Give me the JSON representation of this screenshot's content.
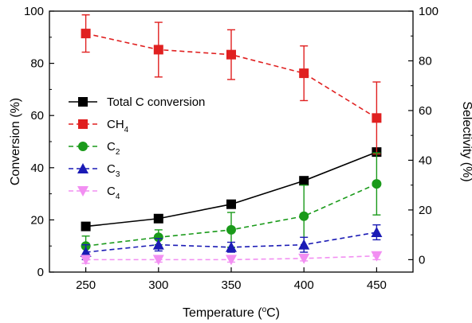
{
  "chart_data": {
    "type": "line",
    "title": "",
    "xlabel": "Temperature (°C)",
    "ylabel_left": "Conversion (%)",
    "ylabel_right": "Selectivity (%)",
    "x": [
      250,
      300,
      350,
      400,
      450
    ],
    "xlim": [
      225,
      475
    ],
    "ylim_left": [
      0,
      100
    ],
    "ylim_right": [
      -5,
      100
    ],
    "x_ticks": [
      "250",
      "300",
      "350",
      "400",
      "450"
    ],
    "y_ticks_left": [
      "0",
      "20",
      "40",
      "60",
      "80",
      "100"
    ],
    "y_ticks_right": [
      "0",
      "20",
      "40",
      "60",
      "80",
      "100"
    ],
    "grid": false,
    "legend_position": "left",
    "series": [
      {
        "name": "Total C conversion",
        "label_main": "Total C conversion",
        "label_sub": "",
        "axis": "left",
        "values": [
          17.5,
          20.5,
          26,
          35,
          46
        ],
        "errors": [
          0.8,
          0.6,
          0.6,
          0.6,
          0.8
        ],
        "color": "#000000",
        "marker": "square",
        "line": "solid"
      },
      {
        "name": "CH4",
        "label_main": "CH",
        "label_sub": "4",
        "axis": "right",
        "values": [
          91,
          84.5,
          82.5,
          75,
          57
        ],
        "errors": [
          7.5,
          11,
          10,
          11,
          14.5
        ],
        "color": "#e02020",
        "marker": "square",
        "line": "dashed"
      },
      {
        "name": "C2",
        "label_main": "C",
        "label_sub": "2",
        "axis": "right",
        "values": [
          5.5,
          9,
          12,
          17.5,
          30.5
        ],
        "errors": [
          4,
          3,
          7,
          12.5,
          12.5
        ],
        "color": "#1a9a1a",
        "marker": "circle",
        "line": "dashed"
      },
      {
        "name": "C3",
        "label_main": "C",
        "label_sub": "3",
        "axis": "right",
        "values": [
          3,
          6,
          5,
          6,
          11
        ],
        "errors": [
          3,
          2.5,
          2,
          3,
          3
        ],
        "color": "#1b1bb5",
        "marker": "triangle-up",
        "line": "dashed"
      },
      {
        "name": "C4",
        "label_main": "C",
        "label_sub": "4",
        "axis": "right",
        "values": [
          0,
          0,
          0,
          0.5,
          1.5
        ],
        "errors": [
          1.5,
          1,
          1,
          1,
          1.5
        ],
        "color": "#f28ff2",
        "marker": "triangle-down",
        "line": "dashed"
      }
    ]
  }
}
